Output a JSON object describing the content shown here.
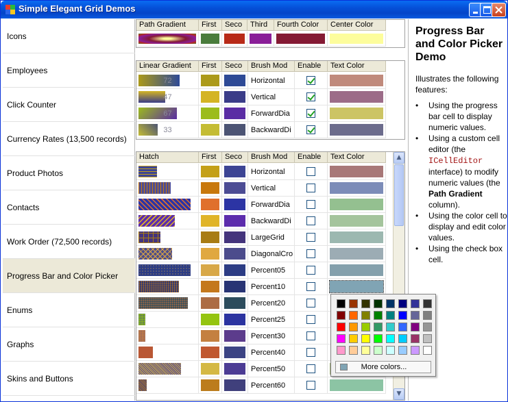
{
  "window": {
    "title": "Simple Elegant Grid Demos"
  },
  "sidebar": {
    "items": [
      "Icons",
      "Employees",
      "Click Counter",
      "Currency Rates (13,500 records)",
      "Product Photos",
      "Contacts",
      "Work Order (72,500 records)",
      "Progress Bar and Color Picker",
      "Enums",
      "Graphs",
      "Skins and Buttons"
    ],
    "selected": "Progress Bar and Color Picker"
  },
  "grid1": {
    "headers": [
      "Path Gradient",
      "First",
      "Seco",
      "Third",
      "Fourth Color",
      "Center Color"
    ],
    "row": {
      "first": "#4a7c3c",
      "second": "#b82a18",
      "third": "#8a1e98",
      "fourth": "#841a34",
      "center": "#fdfd9c"
    }
  },
  "grid2": {
    "headers": [
      "Linear Gradient",
      "First",
      "Seco",
      "Brush Mod",
      "Enable",
      "Text Color"
    ],
    "rows": [
      {
        "progress": "72",
        "first": "#ac9a1a",
        "second": "#2e4a96",
        "mode": "Horizontal",
        "enabled": true,
        "text_color": "#c08a7c"
      },
      {
        "progress": "47",
        "first": "#d4b424",
        "second": "#3a3c88",
        "mode": "Vertical",
        "enabled": true,
        "text_color": "#9c6c88"
      },
      {
        "progress": "67",
        "first": "#9cbc1c",
        "second": "#5a2ca4",
        "mode": "ForwardDia",
        "enabled": true,
        "text_color": "#ccc464"
      },
      {
        "progress": "33",
        "first": "#c4bc34",
        "second": "#4c5474",
        "mode": "BackwardDi",
        "enabled": true,
        "text_color": "#6c6c8c"
      }
    ]
  },
  "grid3": {
    "headers": [
      "Hatch",
      "First",
      "Seco",
      "Brush Mod",
      "Enable",
      "Text Color"
    ],
    "rows": [
      {
        "fill": 0.35,
        "first": "#c4a018",
        "second": "#3c4494",
        "mode": "Horizontal",
        "enabled": false,
        "text_color": "#a87878"
      },
      {
        "fill": 0.62,
        "first": "#c8780c",
        "second": "#4c4c94",
        "mode": "Vertical",
        "enabled": false,
        "text_color": "#7c8cb8"
      },
      {
        "fill": 1.0,
        "first": "#e0702c",
        "second": "#2c34a4",
        "mode": "ForwardDia",
        "enabled": false,
        "text_color": "#94c090"
      },
      {
        "fill": 0.7,
        "first": "#e0b428",
        "second": "#5c2cac",
        "mode": "BackwardDi",
        "enabled": false,
        "text_color": "#a4c49c"
      },
      {
        "fill": 0.42,
        "first": "#a87c14",
        "second": "#44347c",
        "mode": "LargeGrid",
        "enabled": false,
        "text_color": "#9cb8b0"
      },
      {
        "fill": 0.65,
        "first": "#e0a840",
        "second": "#4c4c8c",
        "mode": "DiagonalCro",
        "enabled": false,
        "text_color": "#9cacb4"
      },
      {
        "fill": 1.0,
        "first": "#d8a848",
        "second": "#2c3c84",
        "mode": "Percent05",
        "enabled": false,
        "text_color": "#84a0ac"
      },
      {
        "fill": 0.77,
        "first": "#c4781c",
        "second": "#283474",
        "mode": "Percent10",
        "enabled": false,
        "text_color": "#80a4b4"
      },
      {
        "fill": 0.95,
        "first": "#ac6c44",
        "second": "#2c4c5c",
        "mode": "Percent20",
        "enabled": false,
        "text_color": ""
      },
      {
        "fill": 0.13,
        "first": "#94c410",
        "second": "#2c34a0",
        "mode": "Percent25",
        "enabled": false,
        "text_color": ""
      },
      {
        "fill": 0.13,
        "first": "#c48040",
        "second": "#5c3c8c",
        "mode": "Percent30",
        "enabled": false,
        "text_color": ""
      },
      {
        "fill": 0.27,
        "first": "#c05830",
        "second": "#3c4484",
        "mode": "Percent40",
        "enabled": false,
        "text_color": ""
      },
      {
        "fill": 0.82,
        "first": "#d4b844",
        "second": "#4c3c94",
        "mode": "Percent50",
        "enabled": false,
        "text_color": "#9cac74"
      },
      {
        "fill": 0.16,
        "first": "#bc7c1c",
        "second": "#40407c",
        "mode": "Percent60",
        "enabled": false,
        "text_color": "#8cc4a4"
      }
    ]
  },
  "picker": {
    "colors": [
      "#000000",
      "#993300",
      "#333300",
      "#003300",
      "#003366",
      "#000080",
      "#333399",
      "#333333",
      "#800000",
      "#ff6600",
      "#808000",
      "#008000",
      "#008080",
      "#0000ff",
      "#666699",
      "#808080",
      "#ff0000",
      "#ff9900",
      "#99cc00",
      "#339966",
      "#33cccc",
      "#3366ff",
      "#800080",
      "#969696",
      "#ff00ff",
      "#ffcc00",
      "#ffff00",
      "#00ff00",
      "#00ffff",
      "#00ccff",
      "#993366",
      "#c0c0c0",
      "#ff99cc",
      "#ffcc99",
      "#ffff99",
      "#ccffcc",
      "#ccffff",
      "#99ccff",
      "#cc99ff",
      "#ffffff"
    ],
    "more_label": "More colors..."
  },
  "description": {
    "title": "Progress Bar and Color Picker Demo",
    "intro": "Illustrates the following features:",
    "b1": "Using  the progress bar cell to display numeric values.",
    "b2a": "Using a custom cell editor (the ",
    "b2code": "ICellEditor",
    "b2b": " interface) to modify numeric values (the ",
    "b2bold": "Path Gradient",
    "b2c": " column).",
    "b3": "Using the color cell to display and edit color values.",
    "b4": "Using the check box cell."
  }
}
